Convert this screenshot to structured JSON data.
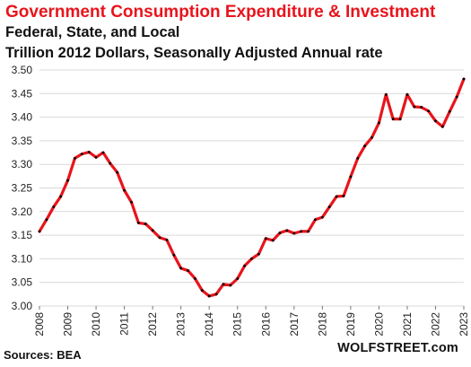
{
  "header": {
    "title": "Government Consumption  Expenditure & Investment",
    "subtitle1": "Federal, State, and Local",
    "subtitle2": "Trillion 2012 Dollars, Seasonally Adjusted Annual rate"
  },
  "footer": {
    "source": "Sources: BEA",
    "brand": "WOLFSTREET.com"
  },
  "colors": {
    "line": "#e8141c",
    "marker": "#000000",
    "grid": "#d9d9d9",
    "title": "#e8141c"
  },
  "chart_data": {
    "type": "line",
    "title": "Government Consumption  Expenditure & Investment",
    "xlabel": "",
    "ylabel": "",
    "ylim": [
      3.0,
      3.5
    ],
    "xlim": [
      2008,
      2023
    ],
    "y_ticks": [
      "3.00",
      "3.05",
      "3.10",
      "3.15",
      "3.20",
      "3.25",
      "3.30",
      "3.35",
      "3.40",
      "3.45",
      "3.50"
    ],
    "x_ticks": [
      "2008",
      "2009",
      "2010",
      "2011",
      "2012",
      "2013",
      "2014",
      "2015",
      "2016",
      "2017",
      "2018",
      "2019",
      "2020",
      "2021",
      "2022",
      "2023"
    ],
    "grid": "horizontal",
    "series": [
      {
        "values": [
          [
            2008.0,
            3.158
          ],
          [
            2008.25,
            3.183
          ],
          [
            2008.5,
            3.21
          ],
          [
            2008.75,
            3.232
          ],
          [
            2009.0,
            3.266
          ],
          [
            2009.25,
            3.313
          ],
          [
            2009.5,
            3.322
          ],
          [
            2009.75,
            3.326
          ],
          [
            2010.0,
            3.315
          ],
          [
            2010.25,
            3.325
          ],
          [
            2010.5,
            3.302
          ],
          [
            2010.75,
            3.283
          ],
          [
            2011.0,
            3.245
          ],
          [
            2011.25,
            3.22
          ],
          [
            2011.5,
            3.176
          ],
          [
            2011.75,
            3.174
          ],
          [
            2012.0,
            3.16
          ],
          [
            2012.25,
            3.145
          ],
          [
            2012.5,
            3.14
          ],
          [
            2012.75,
            3.108
          ],
          [
            2013.0,
            3.08
          ],
          [
            2013.25,
            3.075
          ],
          [
            2013.5,
            3.058
          ],
          [
            2013.75,
            3.033
          ],
          [
            2014.0,
            3.021
          ],
          [
            2014.25,
            3.025
          ],
          [
            2014.5,
            3.046
          ],
          [
            2014.75,
            3.044
          ],
          [
            2015.0,
            3.058
          ],
          [
            2015.25,
            3.085
          ],
          [
            2015.5,
            3.1
          ],
          [
            2015.75,
            3.11
          ],
          [
            2016.0,
            3.143
          ],
          [
            2016.25,
            3.139
          ],
          [
            2016.5,
            3.155
          ],
          [
            2016.75,
            3.16
          ],
          [
            2017.0,
            3.154
          ],
          [
            2017.25,
            3.158
          ],
          [
            2017.5,
            3.158
          ],
          [
            2017.75,
            3.183
          ],
          [
            2018.0,
            3.188
          ],
          [
            2018.25,
            3.21
          ],
          [
            2018.5,
            3.232
          ],
          [
            2018.75,
            3.233
          ],
          [
            2019.0,
            3.274
          ],
          [
            2019.25,
            3.313
          ],
          [
            2019.5,
            3.339
          ],
          [
            2019.75,
            3.357
          ],
          [
            2020.0,
            3.388
          ],
          [
            2020.25,
            3.448
          ],
          [
            2020.5,
            3.396
          ],
          [
            2020.75,
            3.396
          ],
          [
            2021.0,
            3.448
          ],
          [
            2021.25,
            3.422
          ],
          [
            2021.5,
            3.421
          ],
          [
            2021.75,
            3.413
          ],
          [
            2022.0,
            3.392
          ],
          [
            2022.25,
            3.38
          ],
          [
            2022.5,
            3.412
          ],
          [
            2022.75,
            3.443
          ],
          [
            2023.0,
            3.481
          ]
        ]
      }
    ]
  }
}
